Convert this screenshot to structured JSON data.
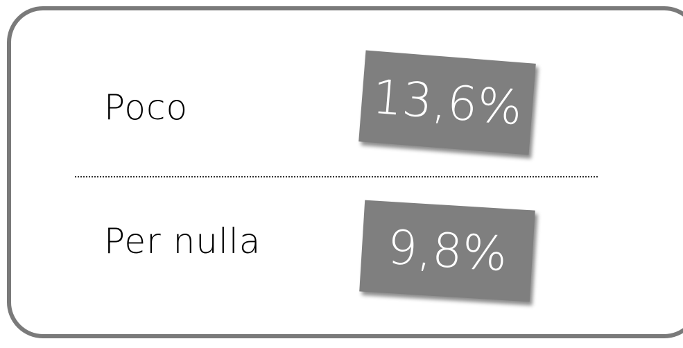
{
  "rows": [
    {
      "label": "Poco",
      "value": "13,6%"
    },
    {
      "label": "Per nulla",
      "value": "9,8%"
    }
  ]
}
